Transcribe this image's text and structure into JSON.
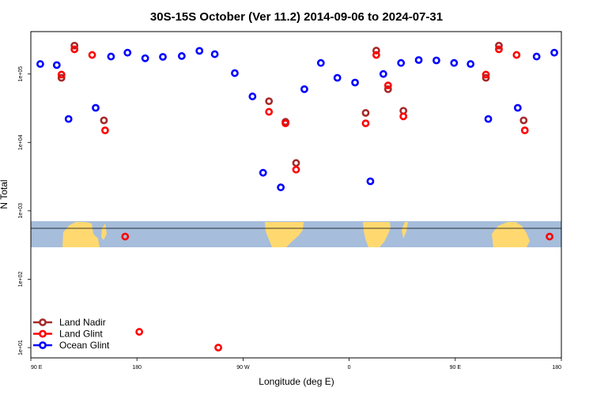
{
  "chart_data": {
    "type": "scatter",
    "title": "30S-15S October (Ver 11.2)   2014-09-06 to 2024-07-31",
    "xlabel": "Longitude (deg E)",
    "ylabel": "N Total",
    "x_ticks": [
      {
        "value": 90,
        "label": "90 E"
      },
      {
        "value": 180,
        "label": "180"
      },
      {
        "value": 270,
        "label": "90 W"
      },
      {
        "value": 360,
        "label": "0"
      },
      {
        "value": 450,
        "label": "90 E"
      },
      {
        "value": 540,
        "label": "180"
      }
    ],
    "y_ticks": [
      {
        "value": 10,
        "label": "1e+01"
      },
      {
        "value": 100,
        "label": "1e+02"
      },
      {
        "value": 1000,
        "label": "1e+03"
      },
      {
        "value": 10000,
        "label": "1e+04"
      },
      {
        "value": 100000,
        "label": "1e+05"
      }
    ],
    "xlim": [
      90,
      540
    ],
    "ylim_log10": [
      0.85,
      5.62
    ],
    "y_scale": "log",
    "legend_position": "bottom-left",
    "series": [
      {
        "name": "Land Nadir",
        "color": "#a52a2a",
        "points": [
          {
            "x": 116,
            "y": 88000
          },
          {
            "x": 127,
            "y": 260000
          },
          {
            "x": 152,
            "y": 21000
          },
          {
            "x": 292,
            "y": 40000
          },
          {
            "x": 306,
            "y": 20000
          },
          {
            "x": 315,
            "y": 5000
          },
          {
            "x": 374,
            "y": 27000
          },
          {
            "x": 383,
            "y": 220000
          },
          {
            "x": 393,
            "y": 60000
          },
          {
            "x": 406,
            "y": 29000
          },
          {
            "x": 476,
            "y": 88000
          },
          {
            "x": 487,
            "y": 260000
          },
          {
            "x": 508,
            "y": 21000
          }
        ]
      },
      {
        "name": "Land Glint",
        "color": "#ff0000",
        "points": [
          {
            "x": 116,
            "y": 98000
          },
          {
            "x": 127,
            "y": 230000
          },
          {
            "x": 142,
            "y": 190000
          },
          {
            "x": 153,
            "y": 15000
          },
          {
            "x": 170,
            "y": 420
          },
          {
            "x": 182,
            "y": 17
          },
          {
            "x": 249,
            "y": 10
          },
          {
            "x": 292,
            "y": 28000
          },
          {
            "x": 306,
            "y": 19000
          },
          {
            "x": 315,
            "y": 4000
          },
          {
            "x": 374,
            "y": 19000
          },
          {
            "x": 383,
            "y": 190000
          },
          {
            "x": 393,
            "y": 68000
          },
          {
            "x": 406,
            "y": 24000
          },
          {
            "x": 476,
            "y": 98000
          },
          {
            "x": 487,
            "y": 230000
          },
          {
            "x": 502,
            "y": 190000
          },
          {
            "x": 509,
            "y": 15000
          },
          {
            "x": 530,
            "y": 420
          }
        ]
      },
      {
        "name": "Ocean Glint",
        "color": "#0000ff",
        "points": [
          {
            "x": 98,
            "y": 140000
          },
          {
            "x": 112,
            "y": 135000
          },
          {
            "x": 122,
            "y": 22000
          },
          {
            "x": 145,
            "y": 32000
          },
          {
            "x": 158,
            "y": 180000
          },
          {
            "x": 172,
            "y": 205000
          },
          {
            "x": 187,
            "y": 170000
          },
          {
            "x": 202,
            "y": 178000
          },
          {
            "x": 218,
            "y": 183000
          },
          {
            "x": 233,
            "y": 218000
          },
          {
            "x": 246,
            "y": 195000
          },
          {
            "x": 263,
            "y": 103000
          },
          {
            "x": 278,
            "y": 47000
          },
          {
            "x": 287,
            "y": 3600
          },
          {
            "x": 302,
            "y": 2200
          },
          {
            "x": 322,
            "y": 60000
          },
          {
            "x": 336,
            "y": 145000
          },
          {
            "x": 350,
            "y": 88000
          },
          {
            "x": 365,
            "y": 75000
          },
          {
            "x": 378,
            "y": 2700
          },
          {
            "x": 389,
            "y": 100000
          },
          {
            "x": 404,
            "y": 145000
          },
          {
            "x": 419,
            "y": 160000
          },
          {
            "x": 434,
            "y": 158000
          },
          {
            "x": 449,
            "y": 145000
          },
          {
            "x": 463,
            "y": 140000
          },
          {
            "x": 478,
            "y": 22000
          },
          {
            "x": 503,
            "y": 32000
          },
          {
            "x": 519,
            "y": 180000
          },
          {
            "x": 534,
            "y": 205000
          }
        ]
      }
    ]
  }
}
